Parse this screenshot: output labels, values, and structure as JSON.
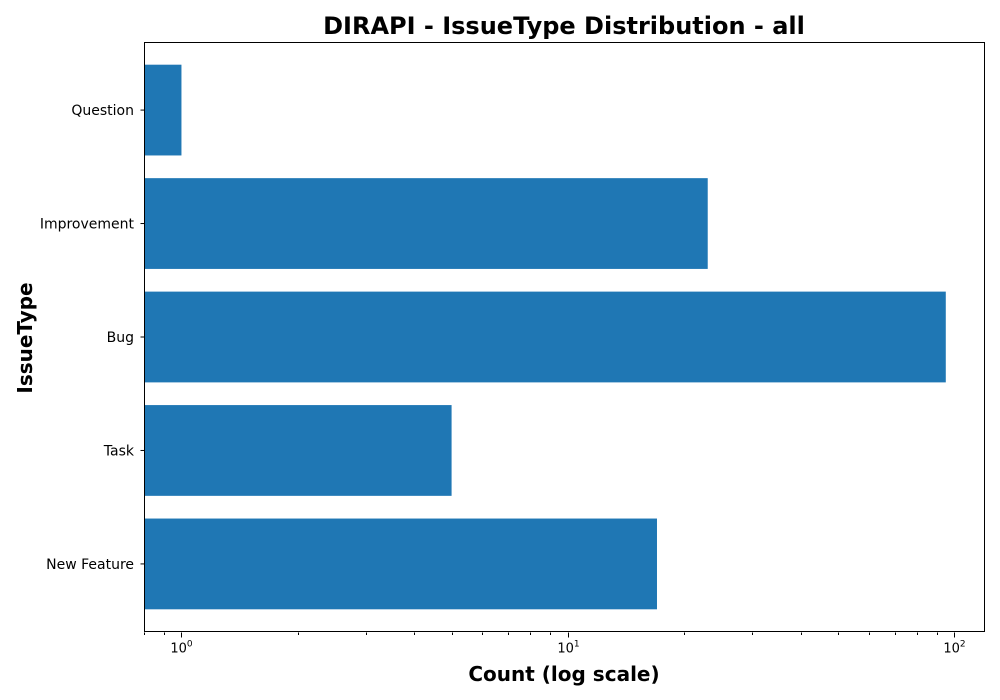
{
  "chart_data": {
    "type": "bar",
    "orientation": "horizontal",
    "title": "DIRAPI - IssueType Distribution - all",
    "xlabel": "Count (log scale)",
    "ylabel": "IssueType",
    "x_scale": "log",
    "xlim": [
      0.8,
      120
    ],
    "x_ticks": [
      {
        "value": 1,
        "base": "10",
        "exp": "0"
      },
      {
        "value": 10,
        "base": "10",
        "exp": "1"
      },
      {
        "value": 100,
        "base": "10",
        "exp": "2"
      }
    ],
    "categories": [
      "New Feature",
      "Task",
      "Bug",
      "Improvement",
      "Question"
    ],
    "values": [
      17,
      5,
      95,
      23,
      1
    ],
    "bar_color": "#1f77b4",
    "grid": false,
    "legend": "none"
  }
}
